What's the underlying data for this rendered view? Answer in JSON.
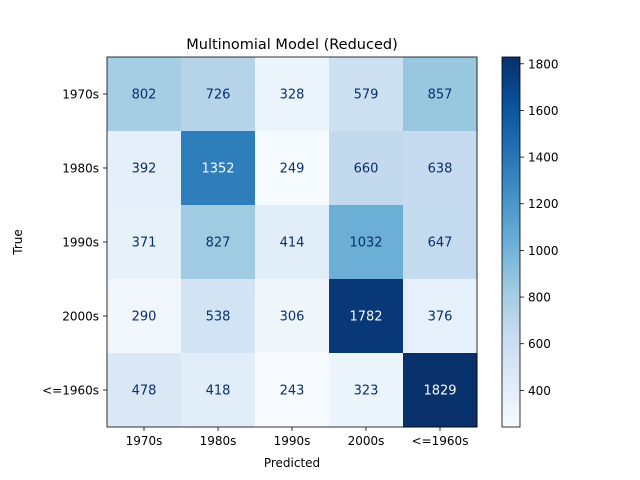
{
  "chart_data": {
    "type": "heatmap",
    "title": "Multinomial Model (Reduced)",
    "xlabel": "Predicted",
    "ylabel": "True",
    "x_categories": [
      "1970s",
      "1980s",
      "1990s",
      "2000s",
      "<=1960s"
    ],
    "y_categories": [
      "1970s",
      "1980s",
      "1990s",
      "2000s",
      "<=1960s"
    ],
    "values": [
      [
        802,
        726,
        328,
        579,
        857
      ],
      [
        392,
        1352,
        249,
        660,
        638
      ],
      [
        371,
        827,
        414,
        1032,
        647
      ],
      [
        290,
        538,
        306,
        1782,
        376
      ],
      [
        478,
        418,
        243,
        323,
        1829
      ]
    ],
    "colormap": "Blues",
    "colorbar": {
      "min": 243,
      "max": 1829,
      "ticks": [
        400,
        600,
        800,
        1000,
        1200,
        1400,
        1600,
        1800
      ]
    },
    "grid": false,
    "legend": "colorbar-right"
  }
}
